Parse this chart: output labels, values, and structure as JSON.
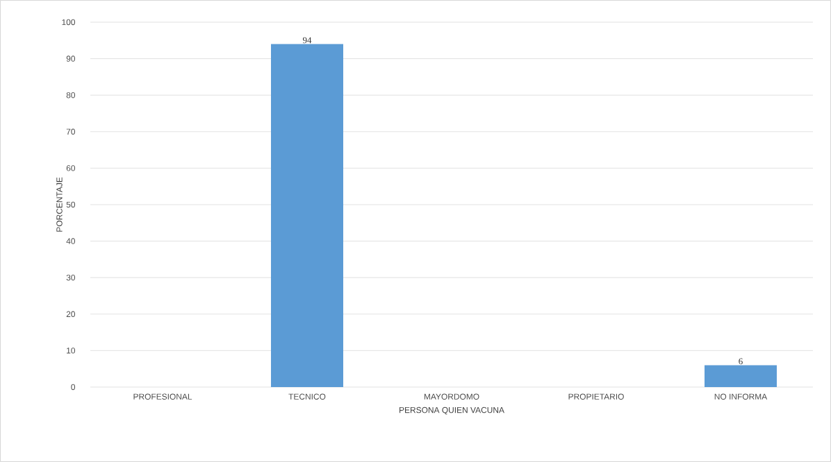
{
  "chart_data": {
    "type": "bar",
    "xlabel": "PERSONA QUIEN VACUNA",
    "ylabel": "PORCENTAJE",
    "categories": [
      "PROFESIONAL",
      "TECNICO",
      "MAYORDOMO",
      "PROPIETARIO",
      "NO INFORMA"
    ],
    "values": [
      0,
      94,
      0,
      0,
      6
    ],
    "value_labels": [
      null,
      "94",
      null,
      null,
      "6"
    ],
    "color": "#5b9bd5",
    "ylim": [
      0,
      100
    ],
    "yticks": [
      0,
      10,
      20,
      30,
      40,
      50,
      60,
      70,
      80,
      90,
      100
    ],
    "grid": "y"
  }
}
